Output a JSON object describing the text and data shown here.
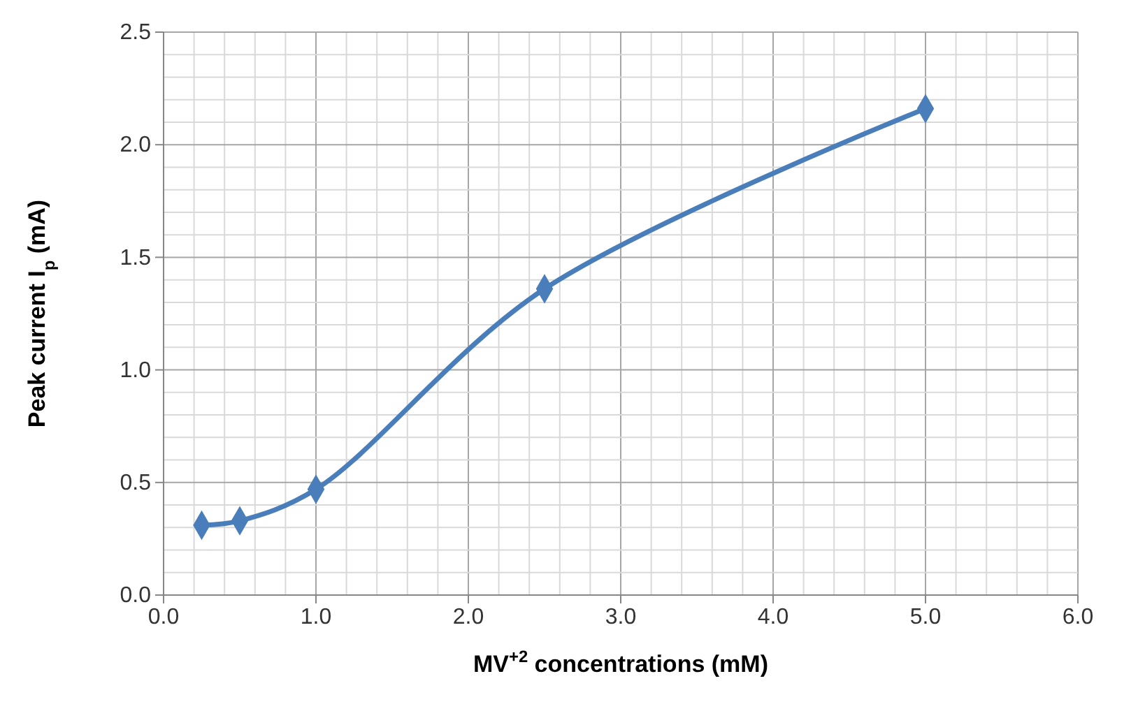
{
  "chart_data": {
    "type": "line",
    "xlabel": "MV$^{+2}$ concentrations (mM)",
    "ylabel": "Peak current I$_{p}$ (mA)",
    "x": [
      0.25,
      0.5,
      1.0,
      2.5,
      5.0
    ],
    "series": [
      {
        "color": "#4a7ebb",
        "values": [
          0.31,
          0.33,
          0.47,
          1.36,
          2.16
        ]
      }
    ],
    "xlim": [
      0,
      6
    ],
    "ylim": [
      0,
      2.5
    ],
    "xticks": [
      {
        "value": 0,
        "label": "0.0"
      },
      {
        "value": 1,
        "label": "1.0"
      },
      {
        "value": 2,
        "label": "2.0"
      },
      {
        "value": 3,
        "label": "3.0"
      },
      {
        "value": 4,
        "label": "4.0"
      },
      {
        "value": 5,
        "label": "5.0"
      },
      {
        "value": 6,
        "label": "6.0"
      }
    ],
    "yticks": [
      {
        "value": 0,
        "label": "0.0"
      },
      {
        "value": 0.5,
        "label": "0.5"
      },
      {
        "value": 1,
        "label": "1.0"
      },
      {
        "value": 1.5,
        "label": "1.5"
      },
      {
        "value": 2,
        "label": "2.0"
      },
      {
        "value": 2.5,
        "label": "2.5"
      }
    ],
    "grid": true,
    "marker": "diamond",
    "line_style": "solid"
  }
}
